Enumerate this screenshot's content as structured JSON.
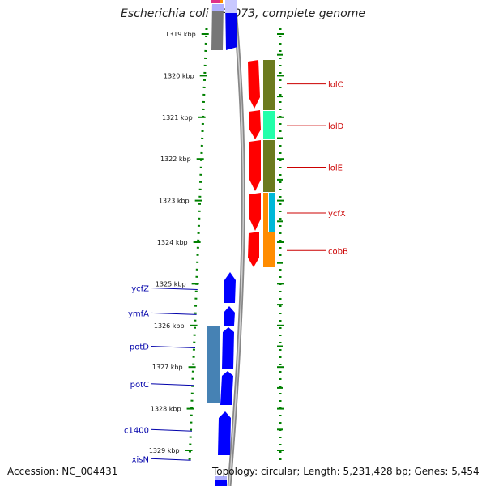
{
  "title": "Escherichia coli CFT073, complete genome",
  "accession": "Accession: NC_004431",
  "summary": "Topology: circular; Length: 5,231,428 bp; Genes: 5,454",
  "axis": {
    "unit": "kbp",
    "ticks": [
      "1319 kbp",
      "1320 kbp",
      "1321 kbp",
      "1322 kbp",
      "1323 kbp",
      "1324 kbp",
      "1325 kbp",
      "1326 kbp",
      "1327 kbp",
      "1328 kbp",
      "1329 kbp"
    ]
  },
  "colors": {
    "forward_strand_genes": "#ff0000",
    "reverse_strand_genes": "#0000ff",
    "backbone": "#888888",
    "tick_green": "#008000"
  },
  "genes_right": [
    {
      "label": "lolC",
      "row_kb": 1320.2
    },
    {
      "label": "lolD",
      "row_kb": 1321.2
    },
    {
      "label": "lolE",
      "row_kb": 1322.2
    },
    {
      "label": "ycfX",
      "row_kb": 1323.3
    },
    {
      "label": "cobB",
      "row_kb": 1324.2
    }
  ],
  "genes_left": [
    {
      "label": "ycfZ",
      "row_kb": 1325.1
    },
    {
      "label": "ymfA",
      "row_kb": 1325.7
    },
    {
      "label": "potD",
      "row_kb": 1326.5
    },
    {
      "label": "potC",
      "row_kb": 1327.4
    },
    {
      "label": "c1400",
      "row_kb": 1328.5
    },
    {
      "label": "xisN",
      "row_kb": 1329.2
    }
  ]
}
